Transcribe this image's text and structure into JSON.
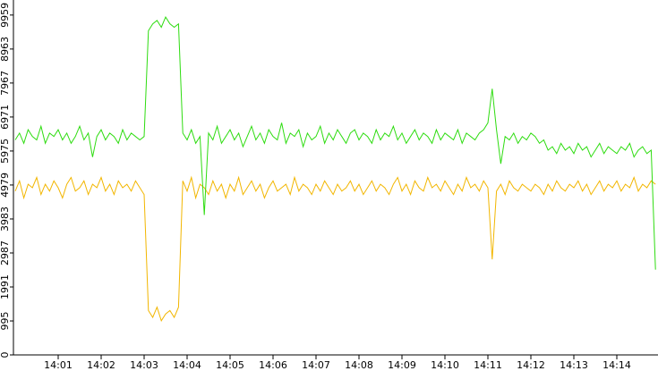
{
  "chart_data": {
    "type": "line",
    "categories": [
      null,
      null,
      null,
      null,
      null,
      null,
      null,
      null,
      null,
      null,
      "14:01",
      null,
      null,
      null,
      null,
      null,
      null,
      null,
      null,
      null,
      "14:02",
      null,
      null,
      null,
      null,
      null,
      null,
      null,
      null,
      null,
      "14:03",
      null,
      null,
      null,
      null,
      null,
      null,
      null,
      null,
      null,
      "14:04",
      null,
      null,
      null,
      null,
      null,
      null,
      null,
      null,
      null,
      "14:05",
      null,
      null,
      null,
      null,
      null,
      null,
      null,
      null,
      null,
      "14:06",
      null,
      null,
      null,
      null,
      null,
      null,
      null,
      null,
      null,
      "14:07",
      null,
      null,
      null,
      null,
      null,
      null,
      null,
      null,
      null,
      "14:08",
      null,
      null,
      null,
      null,
      null,
      null,
      null,
      null,
      null,
      "14:09",
      null,
      null,
      null,
      null,
      null,
      null,
      null,
      null,
      null,
      "14:10",
      null,
      null,
      null,
      null,
      null,
      null,
      null,
      null,
      null,
      "14:11",
      null,
      null,
      null,
      null,
      null,
      null,
      null,
      null,
      null,
      "14:12",
      null,
      null,
      null,
      null,
      null,
      null,
      null,
      null,
      null,
      "14:13",
      null,
      null,
      null,
      null,
      null,
      null,
      null,
      null,
      null,
      "14:14",
      null,
      null,
      null,
      null,
      null,
      null,
      null,
      null,
      null
    ],
    "series": [
      {
        "color": "#2edc10",
        "values": [
          6300,
          6500,
          6200,
          6600,
          6400,
          6300,
          6700,
          6200,
          6500,
          6400,
          6600,
          6300,
          6500,
          6200,
          6400,
          6700,
          6300,
          6500,
          5800,
          6400,
          6600,
          6300,
          6500,
          6400,
          6200,
          6600,
          6300,
          6500,
          6400,
          6300,
          6400,
          9500,
          9700,
          9800,
          9600,
          9900,
          9700,
          9600,
          9700,
          6500,
          6300,
          6600,
          6200,
          6400,
          4100,
          6500,
          6300,
          6700,
          6200,
          6400,
          6600,
          6300,
          6500,
          6100,
          6400,
          6700,
          6300,
          6500,
          6200,
          6600,
          6400,
          6300,
          6800,
          6200,
          6500,
          6400,
          6600,
          6100,
          6500,
          6300,
          6400,
          6700,
          6200,
          6500,
          6300,
          6600,
          6400,
          6200,
          6500,
          6600,
          6300,
          6500,
          6400,
          6200,
          6600,
          6300,
          6500,
          6400,
          6700,
          6300,
          6500,
          6200,
          6400,
          6600,
          6300,
          6500,
          6400,
          6200,
          6600,
          6300,
          6500,
          6400,
          6300,
          6600,
          6200,
          6500,
          6400,
          6300,
          6500,
          6600,
          6800,
          7800,
          6600,
          5600,
          6400,
          6300,
          6500,
          6200,
          6400,
          6300,
          6500,
          6400,
          6200,
          6300,
          6000,
          6100,
          5900,
          6200,
          6000,
          6100,
          5900,
          6200,
          6000,
          6100,
          5800,
          6000,
          6200,
          5900,
          6100,
          6000,
          5900,
          6100,
          6000,
          6200,
          5800,
          6000,
          6100,
          5900,
          6000,
          2500
        ]
      },
      {
        "color": "#f2b600",
        "values": [
          4800,
          5100,
          4600,
          5000,
          4900,
          5200,
          4700,
          5000,
          4800,
          5100,
          4900,
          4600,
          5000,
          5200,
          4800,
          4900,
          5100,
          4700,
          5000,
          4900,
          5200,
          4800,
          5000,
          4700,
          5100,
          4900,
          5000,
          4800,
          5100,
          4900,
          4700,
          1300,
          1100,
          1400,
          1000,
          1200,
          1300,
          1100,
          1400,
          5100,
          4800,
          5200,
          4600,
          5000,
          4900,
          4700,
          5100,
          4800,
          5000,
          4600,
          5000,
          4800,
          5200,
          4700,
          4900,
          5100,
          4800,
          5000,
          4600,
          4900,
          5100,
          4800,
          4900,
          5000,
          4700,
          5200,
          4800,
          5000,
          4900,
          4700,
          5000,
          4800,
          5100,
          4900,
          4700,
          5000,
          4800,
          4900,
          5100,
          4800,
          5000,
          4700,
          4900,
          5100,
          4800,
          5000,
          4900,
          4700,
          5000,
          5200,
          4800,
          5000,
          4700,
          5100,
          4900,
          4800,
          5200,
          4900,
          5000,
          4800,
          5100,
          4900,
          4700,
          5000,
          4800,
          5200,
          4900,
          5000,
          4800,
          5100,
          4900,
          2800,
          4800,
          5000,
          4700,
          5100,
          4900,
          4800,
          5000,
          4900,
          4800,
          5000,
          4900,
          4700,
          5000,
          4800,
          5100,
          4900,
          4800,
          5000,
          4900,
          5100,
          4800,
          5000,
          4700,
          4900,
          5100,
          4800,
          5000,
          4900,
          5100,
          4800,
          5000,
          4900,
          5200,
          4800,
          5000,
          4900,
          5100,
          5000
        ]
      }
    ],
    "ylim": [
      0,
      10400
    ],
    "yticks": [
      0,
      995,
      1991,
      2987,
      3983,
      4979,
      5975,
      6971,
      7967,
      8963,
      9959
    ]
  }
}
